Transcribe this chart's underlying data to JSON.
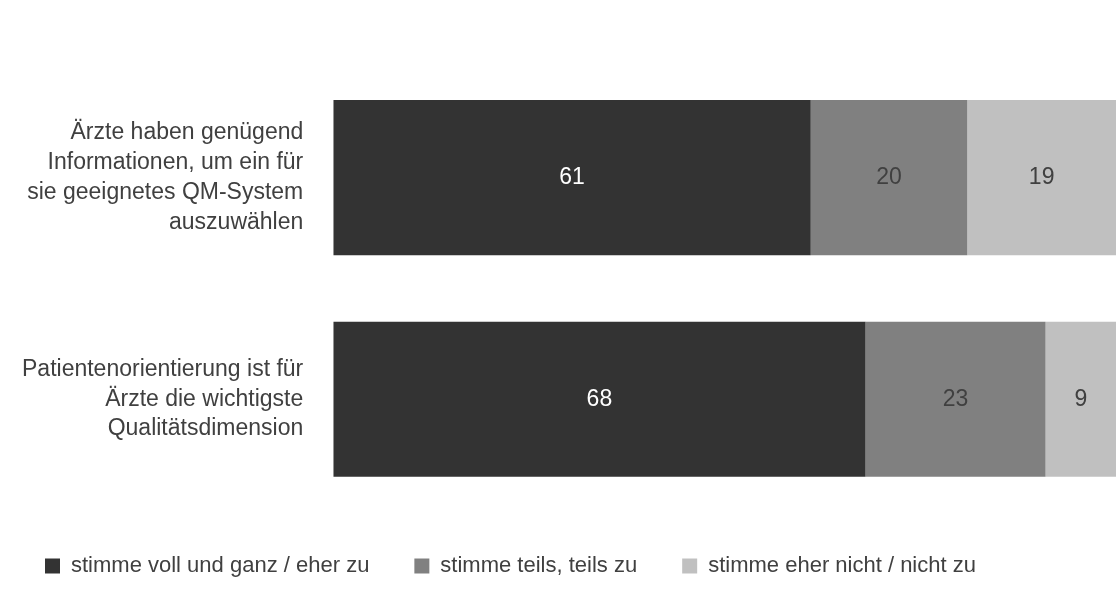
{
  "chart_data": {
    "type": "bar",
    "orientation": "horizontal",
    "stacked": true,
    "data_labels": true,
    "grid": false,
    "legend": "bottom",
    "tick_labels": "y",
    "xlim": [
      0,
      100
    ],
    "categories": [
      "Ärzte haben genügend Informationen, um ein für sie geeignetes QM-System auszuwählen",
      "Patientenorientierung ist für Ärzte die wichtigste Qualitätsdimension"
    ],
    "series": [
      {
        "name": "stimme voll und ganz / eher zu",
        "color": "#333333",
        "values": [
          61,
          68
        ]
      },
      {
        "name": "stimme teils, teils zu",
        "color": "#808080",
        "values": [
          20,
          23
        ]
      },
      {
        "name": "stimme eher nicht / nicht zu",
        "color": "#c0c0c0",
        "values": [
          19,
          9
        ]
      }
    ]
  }
}
